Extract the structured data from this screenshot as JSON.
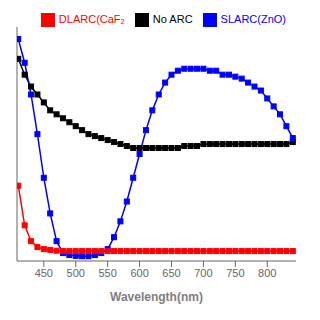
{
  "chart_data": {
    "type": "line",
    "xlabel": "Wavelength(nm)",
    "x": [
      410,
      420,
      430,
      440,
      450,
      460,
      470,
      480,
      490,
      500,
      510,
      520,
      530,
      540,
      550,
      560,
      570,
      580,
      590,
      600,
      610,
      620,
      630,
      640,
      650,
      660,
      670,
      680,
      690,
      700,
      710,
      720,
      730,
      740,
      750,
      760,
      770,
      780,
      790,
      800,
      810,
      820,
      830,
      840
    ],
    "series": [
      {
        "name": "No ARC",
        "color": "#000000",
        "marker": "square",
        "values": [
          0.5,
          0.46,
          0.43,
          0.41,
          0.39,
          0.37,
          0.36,
          0.35,
          0.34,
          0.33,
          0.32,
          0.31,
          0.305,
          0.3,
          0.295,
          0.29,
          0.285,
          0.28,
          0.275,
          0.275,
          0.275,
          0.275,
          0.275,
          0.275,
          0.275,
          0.275,
          0.28,
          0.28,
          0.28,
          0.285,
          0.285,
          0.285,
          0.285,
          0.285,
          0.285,
          0.285,
          0.285,
          0.285,
          0.285,
          0.285,
          0.285,
          0.285,
          0.285,
          0.29
        ]
      },
      {
        "name": "SLARC(ZnO)",
        "color": "#0000ff",
        "marker": "square",
        "values": [
          0.55,
          0.49,
          0.41,
          0.31,
          0.2,
          0.11,
          0.04,
          0.01,
          0.005,
          0.003,
          0.002,
          0.002,
          0.005,
          0.01,
          0.02,
          0.05,
          0.09,
          0.14,
          0.2,
          0.26,
          0.32,
          0.37,
          0.41,
          0.44,
          0.46,
          0.47,
          0.475,
          0.475,
          0.475,
          0.475,
          0.47,
          0.47,
          0.46,
          0.46,
          0.455,
          0.45,
          0.44,
          0.43,
          0.42,
          0.4,
          0.38,
          0.36,
          0.33,
          0.3
        ]
      },
      {
        "name": "DLARC(CaF₂",
        "color": "#ff0000",
        "marker": "square",
        "values": [
          0.18,
          0.08,
          0.04,
          0.025,
          0.02,
          0.018,
          0.016,
          0.015,
          0.015,
          0.015,
          0.015,
          0.015,
          0.015,
          0.015,
          0.015,
          0.015,
          0.015,
          0.015,
          0.015,
          0.015,
          0.015,
          0.015,
          0.015,
          0.015,
          0.015,
          0.015,
          0.015,
          0.015,
          0.015,
          0.015,
          0.015,
          0.015,
          0.015,
          0.015,
          0.015,
          0.015,
          0.015,
          0.015,
          0.015,
          0.015,
          0.015,
          0.015,
          0.015,
          0.015
        ]
      }
    ],
    "xlim": [
      408,
      845
    ],
    "ylim": [
      -0.01,
      0.58
    ],
    "xticks": [
      450,
      500,
      550,
      600,
      650,
      700,
      750,
      800
    ],
    "tick_labels": "x",
    "grid": false,
    "legend": "upper right"
  }
}
